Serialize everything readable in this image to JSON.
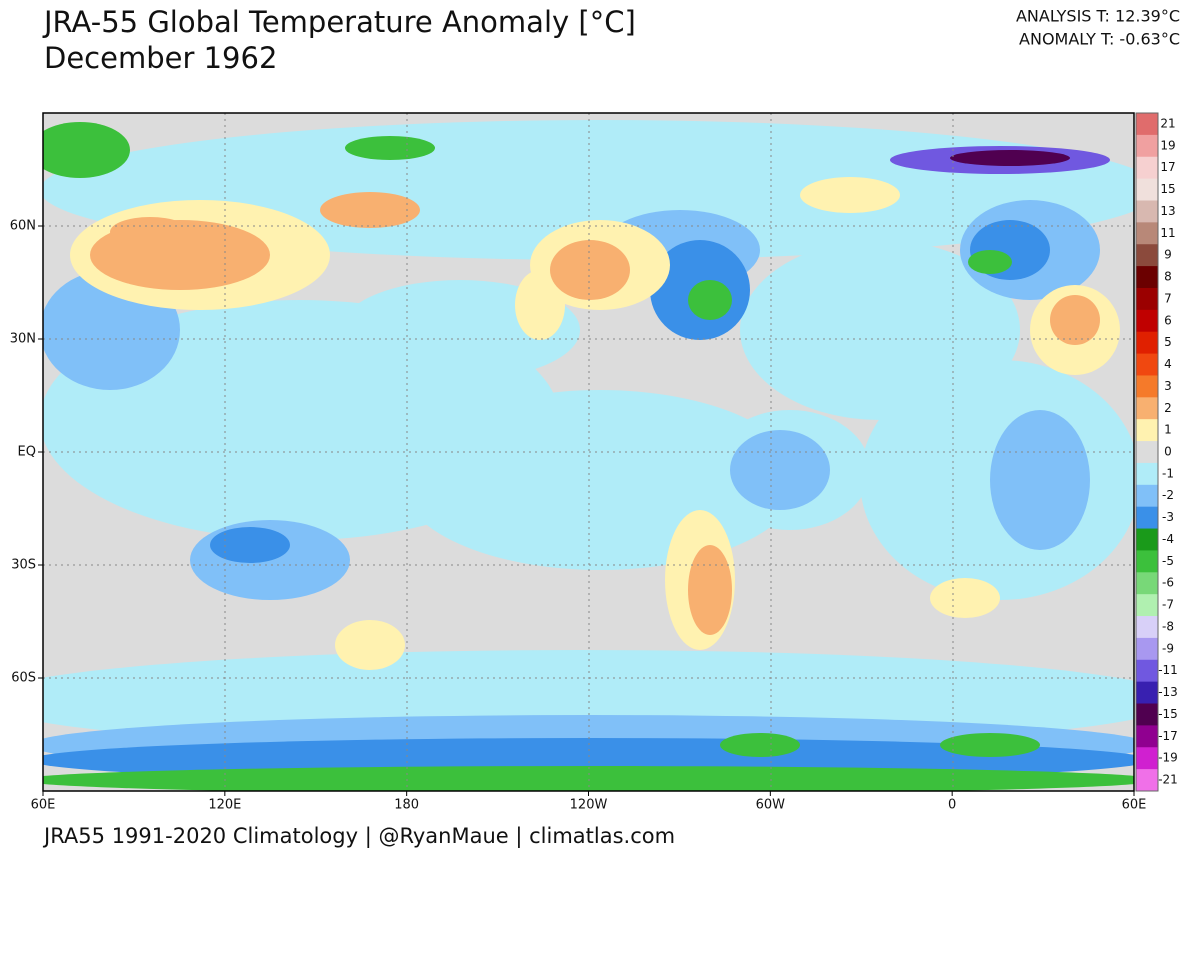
{
  "header": {
    "title": "JRA-55 Global Temperature Anomaly [°C]",
    "subtitle": "December 1962"
  },
  "stats": {
    "analysis": "ANALYSIS T: 12.39°C",
    "anomaly": "ANOMALY T: -0.63°C"
  },
  "map": {
    "lat_labels": [
      "60N",
      "30N",
      "EQ",
      "30S",
      "60S"
    ],
    "lon_labels": [
      "60E",
      "120E",
      "180",
      "120W",
      "60W",
      "0",
      "60E"
    ]
  },
  "colorbar": {
    "levels": [
      {
        "label": 21,
        "color": "#e06c6c"
      },
      {
        "label": 19,
        "color": "#f0a0a0"
      },
      {
        "label": 17,
        "color": "#f6d0d0"
      },
      {
        "label": 15,
        "color": "#f0e0dc"
      },
      {
        "label": 13,
        "color": "#d8b8b0"
      },
      {
        "label": 11,
        "color": "#b88878"
      },
      {
        "label": 9,
        "color": "#8b4a3c"
      },
      {
        "label": 8,
        "color": "#6b0000"
      },
      {
        "label": 7,
        "color": "#9b0000"
      },
      {
        "label": 6,
        "color": "#c00000"
      },
      {
        "label": 5,
        "color": "#e02000"
      },
      {
        "label": 4,
        "color": "#f04810"
      },
      {
        "label": 3,
        "color": "#f57a2a"
      },
      {
        "label": 2,
        "color": "#f8b070"
      },
      {
        "label": 1,
        "color": "#fff2b0"
      },
      {
        "label": 0,
        "color": "#dcdcdc"
      },
      {
        "label": -1,
        "color": "#b0ecf8"
      },
      {
        "label": -2,
        "color": "#80c0f8"
      },
      {
        "label": -3,
        "color": "#3a90e8"
      },
      {
        "label": -4,
        "color": "#1a9a1a"
      },
      {
        "label": -5,
        "color": "#3cc03c"
      },
      {
        "label": -6,
        "color": "#78d878"
      },
      {
        "label": -7,
        "color": "#b0f0b0"
      },
      {
        "label": -8,
        "color": "#d8d0f8"
      },
      {
        "label": -9,
        "color": "#a898f0"
      },
      {
        "label": -11,
        "color": "#7058e0"
      },
      {
        "label": -13,
        "color": "#3820b0"
      },
      {
        "label": -15,
        "color": "#500050"
      },
      {
        "label": -17,
        "color": "#900090"
      },
      {
        "label": -19,
        "color": "#d020d0"
      },
      {
        "label": -21,
        "color": "#f070e8"
      }
    ]
  },
  "footer": "JRA55 1991-2020 Climatology | @RyanMaue | climatlas.com"
}
